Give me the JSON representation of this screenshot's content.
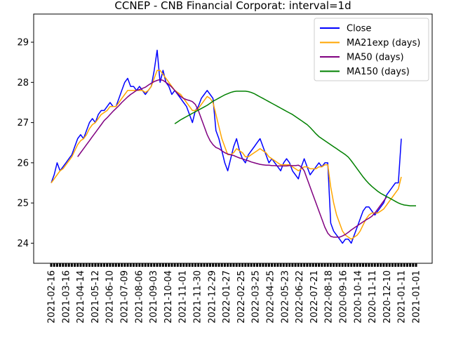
{
  "chart_data": {
    "type": "line",
    "title": "CCNEP - CNB Financial Corporat: interval=1d",
    "xlabel": "",
    "ylabel": "",
    "ylim": [
      23.5,
      29.7
    ],
    "yticks": [
      24,
      25,
      26,
      27,
      28,
      29
    ],
    "legend_position": "top-right",
    "grid": false,
    "x_tick_labels": [
      "2021-02-16",
      "2021-03-16",
      "2021-04-14",
      "2021-05-12",
      "2021-06-10",
      "2021-07-09",
      "2021-08-06",
      "2021-09-03",
      "2021-10-04",
      "2021-11-01",
      "2021-11-30",
      "2021-12-29",
      "2022-01-27",
      "2022-02-25",
      "2022-03-25",
      "2022-04-25",
      "2022-05-23",
      "2022-06-22",
      "2022-07-21",
      "2022-08-18",
      "2020-09-16",
      "2020-10-14",
      "2020-11-11",
      "2020-12-10",
      "2021-01-11",
      "2021-01-01"
    ],
    "series": [
      {
        "name": "Close",
        "color": "#0000ff",
        "start": 0,
        "values": [
          25.5,
          25.7,
          26.0,
          25.8,
          25.9,
          26.0,
          26.1,
          26.2,
          26.4,
          26.6,
          26.7,
          26.6,
          26.8,
          27.0,
          27.1,
          27.0,
          27.2,
          27.3,
          27.3,
          27.4,
          27.5,
          27.4,
          27.4,
          27.6,
          27.8,
          28.0,
          28.1,
          27.9,
          27.9,
          27.8,
          27.9,
          27.8,
          27.7,
          27.8,
          27.9,
          28.3,
          28.8,
          28.0,
          28.3,
          28.0,
          27.9,
          27.7,
          27.8,
          27.7,
          27.6,
          27.5,
          27.4,
          27.2,
          27.0,
          27.3,
          27.4,
          27.6,
          27.7,
          27.8,
          27.7,
          27.6,
          26.8,
          26.6,
          26.3,
          26.0,
          25.8,
          26.1,
          26.4,
          26.6,
          26.3,
          26.1,
          26.0,
          26.2,
          26.3,
          26.4,
          26.5,
          26.6,
          26.4,
          26.2,
          26.0,
          26.1,
          26.0,
          25.9,
          25.8,
          26.0,
          26.1,
          26.0,
          25.8,
          25.7,
          25.6,
          25.9,
          26.1,
          25.9,
          25.7,
          25.8,
          25.9,
          26.0,
          25.9,
          26.0,
          26.0,
          24.5,
          24.3,
          24.2,
          24.1,
          24.0,
          24.1,
          24.1,
          24.0,
          24.2,
          24.4,
          24.6,
          24.8,
          24.9,
          24.9,
          24.8,
          24.7,
          24.8,
          24.9,
          25.0,
          25.2,
          25.3,
          25.4,
          25.5,
          25.5,
          26.6
        ]
      },
      {
        "name": "MA21exp (days)",
        "color": "#ffa500",
        "start": 0,
        "values": [
          25.5,
          25.6,
          25.7,
          25.8,
          25.85,
          25.95,
          26.05,
          26.15,
          26.3,
          26.45,
          26.55,
          26.6,
          26.7,
          26.85,
          26.95,
          27.0,
          27.1,
          27.2,
          27.25,
          27.3,
          27.4,
          27.4,
          27.4,
          27.5,
          27.6,
          27.7,
          27.8,
          27.8,
          27.8,
          27.8,
          27.8,
          27.8,
          27.75,
          27.8,
          27.9,
          28.1,
          28.3,
          28.3,
          28.2,
          28.1,
          28.0,
          27.9,
          27.8,
          27.75,
          27.7,
          27.6,
          27.5,
          27.4,
          27.3,
          27.3,
          27.35,
          27.45,
          27.55,
          27.65,
          27.6,
          27.5,
          27.2,
          26.9,
          26.6,
          26.4,
          26.2,
          26.2,
          26.25,
          26.35,
          26.3,
          26.25,
          26.15,
          26.15,
          26.2,
          26.25,
          26.3,
          26.35,
          26.3,
          26.25,
          26.15,
          26.1,
          26.05,
          26.0,
          25.95,
          25.95,
          25.95,
          25.95,
          25.9,
          25.85,
          25.8,
          25.85,
          25.9,
          25.9,
          25.85,
          25.85,
          25.85,
          25.9,
          25.9,
          25.95,
          25.95,
          25.4,
          25.0,
          24.7,
          24.5,
          24.3,
          24.2,
          24.15,
          24.1,
          24.15,
          24.2,
          24.3,
          24.45,
          24.6,
          24.7,
          24.75,
          24.75,
          24.75,
          24.8,
          24.85,
          24.95,
          25.05,
          25.15,
          25.25,
          25.35,
          25.65
        ]
      },
      {
        "name": "MA50 (days)",
        "color": "#800080",
        "start": 9,
        "values": [
          26.15,
          26.25,
          26.35,
          26.45,
          26.55,
          26.65,
          26.75,
          26.85,
          26.95,
          27.05,
          27.12,
          27.2,
          27.28,
          27.35,
          27.42,
          27.5,
          27.57,
          27.64,
          27.7,
          27.75,
          27.8,
          27.82,
          27.85,
          27.88,
          27.93,
          27.98,
          28.02,
          28.05,
          28.07,
          28.05,
          28.0,
          27.95,
          27.88,
          27.8,
          27.72,
          27.65,
          27.6,
          27.57,
          27.55,
          27.52,
          27.45,
          27.3,
          27.1,
          26.9,
          26.7,
          26.55,
          26.45,
          26.38,
          26.35,
          26.3,
          26.25,
          26.22,
          26.2,
          26.18,
          26.15,
          26.12,
          26.1,
          26.07,
          26.05,
          26.02,
          26.0,
          25.98,
          25.96,
          25.95,
          25.94,
          25.94,
          25.93,
          25.93,
          25.92,
          25.92,
          25.92,
          25.92,
          25.93,
          25.93,
          25.93,
          25.94,
          25.9,
          25.8,
          25.6,
          25.4,
          25.2,
          25.0,
          24.8,
          24.6,
          24.4,
          24.25,
          24.17,
          24.15,
          24.15,
          24.15,
          24.18,
          24.22,
          24.27,
          24.33,
          24.38,
          24.43,
          24.48,
          24.53,
          24.58,
          24.62,
          24.67,
          24.75,
          24.85,
          24.95,
          25.05,
          25.15
        ]
      },
      {
        "name": "MA150 (days)",
        "color": "#008000",
        "start": 42,
        "values": [
          26.97,
          27.02,
          27.07,
          27.11,
          27.15,
          27.19,
          27.23,
          27.27,
          27.31,
          27.35,
          27.39,
          27.43,
          27.48,
          27.53,
          27.57,
          27.61,
          27.65,
          27.69,
          27.72,
          27.75,
          27.77,
          27.78,
          27.78,
          27.78,
          27.78,
          27.77,
          27.75,
          27.72,
          27.68,
          27.64,
          27.6,
          27.56,
          27.52,
          27.48,
          27.44,
          27.4,
          27.36,
          27.32,
          27.28,
          27.24,
          27.2,
          27.15,
          27.1,
          27.05,
          27.0,
          26.95,
          26.88,
          26.8,
          26.72,
          26.65,
          26.6,
          26.55,
          26.5,
          26.45,
          26.4,
          26.35,
          26.3,
          26.25,
          26.2,
          26.14,
          26.05,
          25.95,
          25.85,
          25.75,
          25.65,
          25.56,
          25.48,
          25.41,
          25.35,
          25.29,
          25.24,
          25.2,
          25.16,
          25.12,
          25.08,
          25.04,
          25.0,
          24.97,
          24.95,
          24.94,
          24.93,
          24.93,
          24.93
        ]
      }
    ]
  }
}
